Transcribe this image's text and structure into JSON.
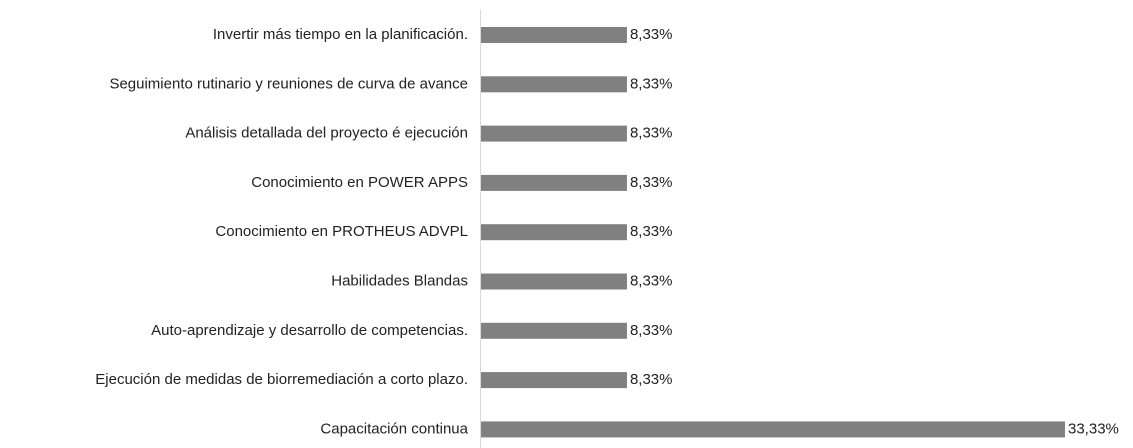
{
  "chart_data": {
    "type": "barh",
    "categories": [
      "Invertir más tiempo en la planificación.",
      "Seguimiento rutinario y reuniones de curva de avance",
      "Análisis detallada del proyecto é ejecución",
      "Conocimiento en POWER APPS",
      "Conocimiento en PROTHEUS ADVPL",
      "Habilidades Blandas",
      "Auto-aprendizaje y desarrollo de competencias.",
      "Ejecución de medidas de biorremediación a corto plazo.",
      "Capacitación continua"
    ],
    "values": [
      8.33,
      8.33,
      8.33,
      8.33,
      8.33,
      8.33,
      8.33,
      8.33,
      33.33
    ],
    "value_labels": [
      "8,33%",
      "8,33%",
      "8,33%",
      "8,33%",
      "8,33%",
      "8,33%",
      "8,33%",
      "8,33%",
      "33,33%"
    ],
    "color": "#808080"
  }
}
